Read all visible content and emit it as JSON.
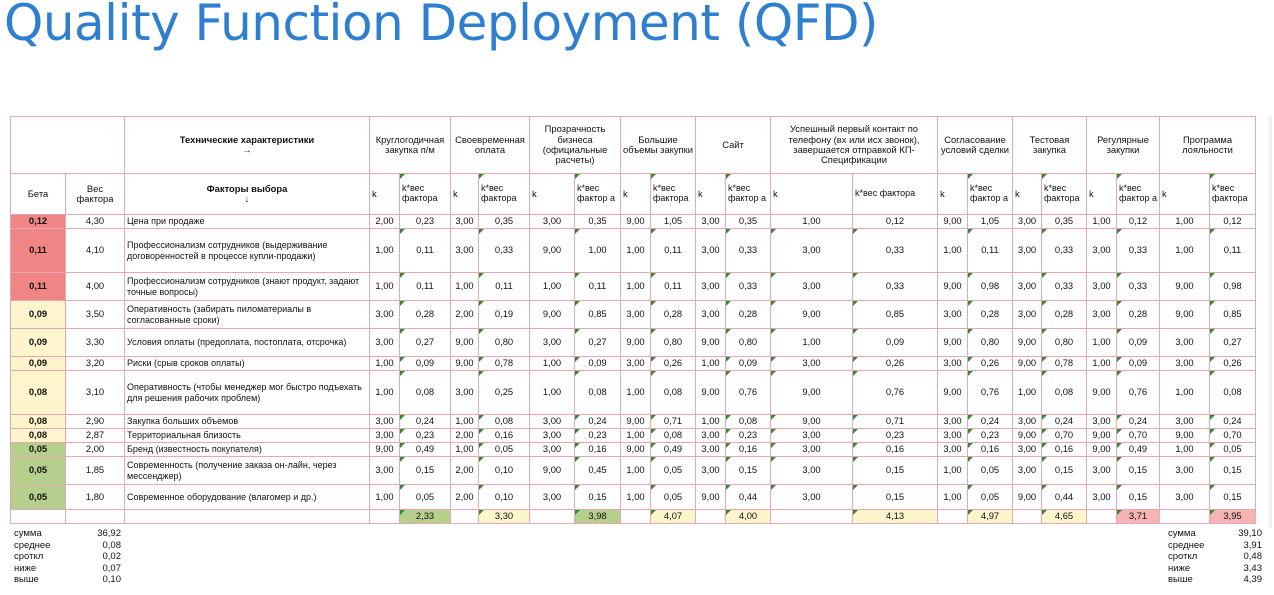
{
  "title": "Quality Function Deployment (QFD)",
  "header": {
    "beta": "Бета",
    "weight": "Вес фактора",
    "tech_chars": "Технические характеристики",
    "tech_arrow": "→",
    "factors": "Факторы выбора",
    "factors_arrow": "↓",
    "k": "k",
    "kw": "k*вес фактора",
    "kw_wrap": "k*вес фактор а"
  },
  "technical_characteristics": [
    "Круглогодичная закупка п/м",
    "Своевременная оплата",
    "Прозрачность бизнеса (официальные расчеты)",
    "Большие объемы закупки",
    "Сайт",
    "Успешный первый контакт по телефону (вх или исх звонок), завершается отправкой КП-Спецификации",
    "Согласование условий сделки",
    "Тестовая закупка",
    "Регулярные закупки",
    "Программа лояльности"
  ],
  "factors": [
    {
      "beta": "0,12",
      "weight": "4,30",
      "name": "Цена при продаже",
      "values": [
        "2,00",
        "0,23",
        "3,00",
        "0,35",
        "3,00",
        "0,35",
        "9,00",
        "1,05",
        "3,00",
        "0,35",
        "1,00",
        "0,12",
        "9,00",
        "1,05",
        "3,00",
        "0,35",
        "1,00",
        "0,12",
        "1,00",
        "0,12"
      ]
    },
    {
      "beta": "0,11",
      "weight": "4,10",
      "name": "Профессионализм сотрудников (выдерживание договоренностей в процессе купли-продажи)",
      "values": [
        "1,00",
        "0,11",
        "3,00",
        "0,33",
        "9,00",
        "1,00",
        "1,00",
        "0,11",
        "3,00",
        "0,33",
        "3,00",
        "0,33",
        "1,00",
        "0,11",
        "3,00",
        "0,33",
        "3,00",
        "0,33",
        "1,00",
        "0,11"
      ]
    },
    {
      "beta": "0,11",
      "weight": "4,00",
      "name": "Профессионализм сотрудников (знают продукт, задают точные вопросы)",
      "values": [
        "1,00",
        "0,11",
        "1,00",
        "0,11",
        "1,00",
        "0,11",
        "1,00",
        "0,11",
        "3,00",
        "0,33",
        "3,00",
        "0,33",
        "9,00",
        "0,98",
        "3,00",
        "0,33",
        "3,00",
        "0,33",
        "9,00",
        "0,98"
      ]
    },
    {
      "beta": "0,09",
      "weight": "3,50",
      "name": "Оперативность (забирать пиломатериалы в согласованные сроки)",
      "values": [
        "3,00",
        "0,28",
        "2,00",
        "0,19",
        "9,00",
        "0,85",
        "3,00",
        "0,28",
        "3,00",
        "0,28",
        "9,00",
        "0,85",
        "3,00",
        "0,28",
        "3,00",
        "0,28",
        "3,00",
        "0,28",
        "9,00",
        "0,85"
      ]
    },
    {
      "beta": "0,09",
      "weight": "3,30",
      "name": "Условия оплаты (предоплата, постоплата, отсрочка)",
      "values": [
        "3,00",
        "0,27",
        "9,00",
        "0,80",
        "3,00",
        "0,27",
        "9,00",
        "0,80",
        "9,00",
        "0,80",
        "1,00",
        "0,09",
        "9,00",
        "0,80",
        "9,00",
        "0,80",
        "1,00",
        "0,09",
        "3,00",
        "0,27"
      ]
    },
    {
      "beta": "0,09",
      "weight": "3,20",
      "name": "Риски (срыв сроков оплаты)",
      "values": [
        "1,00",
        "0,09",
        "9,00",
        "0,78",
        "1,00",
        "0,09",
        "3,00",
        "0,26",
        "1,00",
        "0,09",
        "3,00",
        "0,26",
        "3,00",
        "0,26",
        "9,00",
        "0,78",
        "1,00",
        "0,09",
        "3,00",
        "0,26"
      ]
    },
    {
      "beta": "0,08",
      "weight": "3,10",
      "name": "Оперативность (чтобы менеджер мог быстро подъехать для решения рабочих проблем)",
      "values": [
        "1,00",
        "0,08",
        "3,00",
        "0,25",
        "1,00",
        "0,08",
        "1,00",
        "0,08",
        "9,00",
        "0,76",
        "9,00",
        "0,76",
        "9,00",
        "0,76",
        "1,00",
        "0,08",
        "9,00",
        "0,76",
        "1,00",
        "0,08"
      ]
    },
    {
      "beta": "0,08",
      "weight": "2,90",
      "name": "Закупка больших объемов",
      "values": [
        "3,00",
        "0,24",
        "1,00",
        "0,08",
        "3,00",
        "0,24",
        "9,00",
        "0,71",
        "1,00",
        "0,08",
        "9,00",
        "0,71",
        "3,00",
        "0,24",
        "3,00",
        "0,24",
        "3,00",
        "0,24",
        "3,00",
        "0,24"
      ]
    },
    {
      "beta": "0,08",
      "weight": "2,87",
      "name": "Территориальная близость",
      "values": [
        "3,00",
        "0,23",
        "2,00",
        "0,16",
        "3,00",
        "0,23",
        "1,00",
        "0,08",
        "3,00",
        "0,23",
        "3,00",
        "0,23",
        "3,00",
        "0,23",
        "9,00",
        "0,70",
        "9,00",
        "0,70",
        "9,00",
        "0,70"
      ]
    },
    {
      "beta": "0,05",
      "weight": "2,00",
      "name": "Бренд (известность покупателя)",
      "values": [
        "9,00",
        "0,49",
        "1,00",
        "0,05",
        "3,00",
        "0,16",
        "9,00",
        "0,49",
        "3,00",
        "0,16",
        "3,00",
        "0,16",
        "3,00",
        "0,16",
        "3,00",
        "0,16",
        "9,00",
        "0,49",
        "1,00",
        "0,05"
      ]
    },
    {
      "beta": "0,05",
      "weight": "1,85",
      "name": "Современность (получение заказа он-лайн, через мессенджер)",
      "values": [
        "3,00",
        "0,15",
        "2,00",
        "0,10",
        "9,00",
        "0,45",
        "1,00",
        "0,05",
        "3,00",
        "0,15",
        "3,00",
        "0,15",
        "1,00",
        "0,05",
        "3,00",
        "0,15",
        "3,00",
        "0,15",
        "3,00",
        "0,15"
      ]
    },
    {
      "beta": "0,05",
      "weight": "1,80",
      "name": "Современное оборудование (влагомер и др.)",
      "values": [
        "1,00",
        "0,05",
        "2,00",
        "0,10",
        "3,00",
        "0,15",
        "1,00",
        "0,05",
        "9,00",
        "0,44",
        "3,00",
        "0,15",
        "1,00",
        "0,05",
        "9,00",
        "0,44",
        "3,00",
        "0,15",
        "3,00",
        "0,15"
      ]
    }
  ],
  "totals": [
    "2,33",
    "3,30",
    "3,98",
    "4,07",
    "4,00",
    "4,13",
    "4,97",
    "4,65",
    "3,71",
    "3,95"
  ],
  "stats_left": [
    {
      "label": "сумма",
      "value": "36,92"
    },
    {
      "label": "среднее",
      "value": "0,08"
    },
    {
      "label": "сроткл",
      "value": "0,02"
    },
    {
      "label": "ниже",
      "value": "0,07"
    },
    {
      "label": "выше",
      "value": "0,10"
    }
  ],
  "stats_right": [
    {
      "label": "сумма",
      "value": "39,10"
    },
    {
      "label": "среднее",
      "value": "3,91"
    },
    {
      "label": "сроткл",
      "value": "0,48"
    },
    {
      "label": "ниже",
      "value": "3,43"
    },
    {
      "label": "выше",
      "value": "4,39"
    }
  ],
  "colors": {
    "title": "#2f7fd1",
    "grid": "#e8a6b3",
    "beta_high": "#f08585",
    "beta_mid": "#fff5cc",
    "beta_low": "#b5cf8c",
    "total_green": "#b5cf8c",
    "total_yellow": "#fff5cc",
    "total_red": "#f6b3b3",
    "comment_flag": "#2e8b3a"
  },
  "beta_levels": [
    "high",
    "high",
    "high",
    "mid",
    "mid",
    "mid",
    "mid",
    "mid",
    "mid",
    "low",
    "low",
    "low"
  ],
  "total_levels": [
    "green",
    "yellow",
    "green",
    "yellow",
    "yellow",
    "yellow",
    "yellow",
    "yellow",
    "red",
    "red"
  ]
}
